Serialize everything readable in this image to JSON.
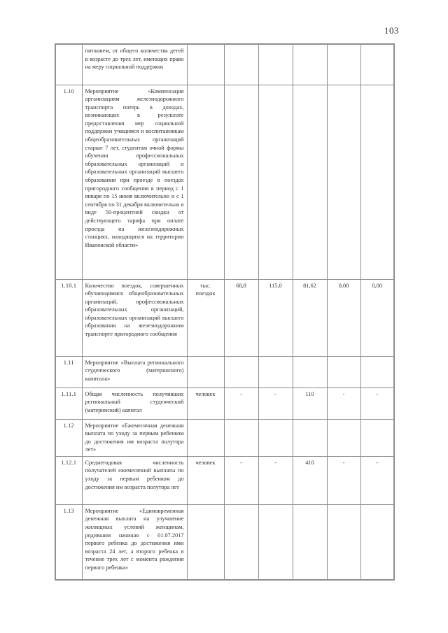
{
  "page": {
    "number": "103"
  },
  "colors": {
    "border": "#8b8b8b",
    "text": "#33333c",
    "background": "#ffffff"
  },
  "table": {
    "rows": [
      {
        "num": "",
        "name": "питанием, от общего количества детей в возрасте до трех лет, имеющих право на меру социальной поддержки",
        "unit": "",
        "values": [
          "",
          "",
          "",
          "",
          ""
        ]
      },
      {
        "num": "1.10",
        "name": "Мероприятие «Компенсация организациям железнодорожного транспорта потерь в доходах, возникающих в результате предоставления мер социальной поддержки учащимся и воспитанникам общеобразовательных организаций старше 7 лет, студентам очной формы обучения профессиональных образовательных организаций и образовательных организаций высшего образования при проезде в поездах пригородного сообщения в период с 1 января по 15 июня включительно и с 1 сентября по 31 декабря включительно в виде 50-процентной скидки от действующего тарифа при оплате проезда на железнодорожных станциях, находящихся на территории Ивановской области»",
        "unit": "",
        "values": [
          "",
          "",
          "",
          "",
          ""
        ]
      },
      {
        "num": "1.10.1",
        "name": "Количество поездок, совершенных обучающимися общеобразовательных организаций, профессиональных образовательных организаций, образовательных организаций высшего образования на железнодорожном транспорте пригородного сообщения",
        "unit": "тыс. поездок",
        "values": [
          "68,8",
          "115,0",
          "81,62",
          "0,00",
          "0,00"
        ]
      },
      {
        "num": "1.11",
        "name": "Мероприятие «Выплата регионального студенческого (материнского) капитала»",
        "unit": "",
        "values": [
          "",
          "",
          "",
          "",
          ""
        ]
      },
      {
        "num": "1.11.1",
        "name": "Общая численность получивших региональный студенческий (материнский) капитал",
        "unit": "человек",
        "values": [
          "-",
          "-",
          "110",
          "-",
          "-"
        ]
      },
      {
        "num": "1.12",
        "name": "Мероприятие «Ежемесячная денежная выплата по уходу за первым ребенком до достижения им возраста полутора лет»",
        "unit": "",
        "values": [
          "",
          "",
          "",
          "",
          ""
        ]
      },
      {
        "num": "1.12.1",
        "name": "Среднегодовая численность получателей ежемесячной выплаты по уходу за первым ребенком до достижения им возраста полутора лет",
        "unit": "человек",
        "values": [
          "-",
          "-",
          "410",
          "-",
          "-"
        ]
      },
      {
        "num": "1.13",
        "name": "Мероприятие «Единовременная денежная выплата на улучшение жилищных условий женщинам, родившим начиная с 01.07.2017 первого ребенка до достижения ими возраста 24 лет, а второго ребенка в течение трех лет с момента рождения первого ребенка»",
        "unit": "",
        "values": [
          "",
          "",
          "",
          "",
          ""
        ]
      }
    ]
  }
}
